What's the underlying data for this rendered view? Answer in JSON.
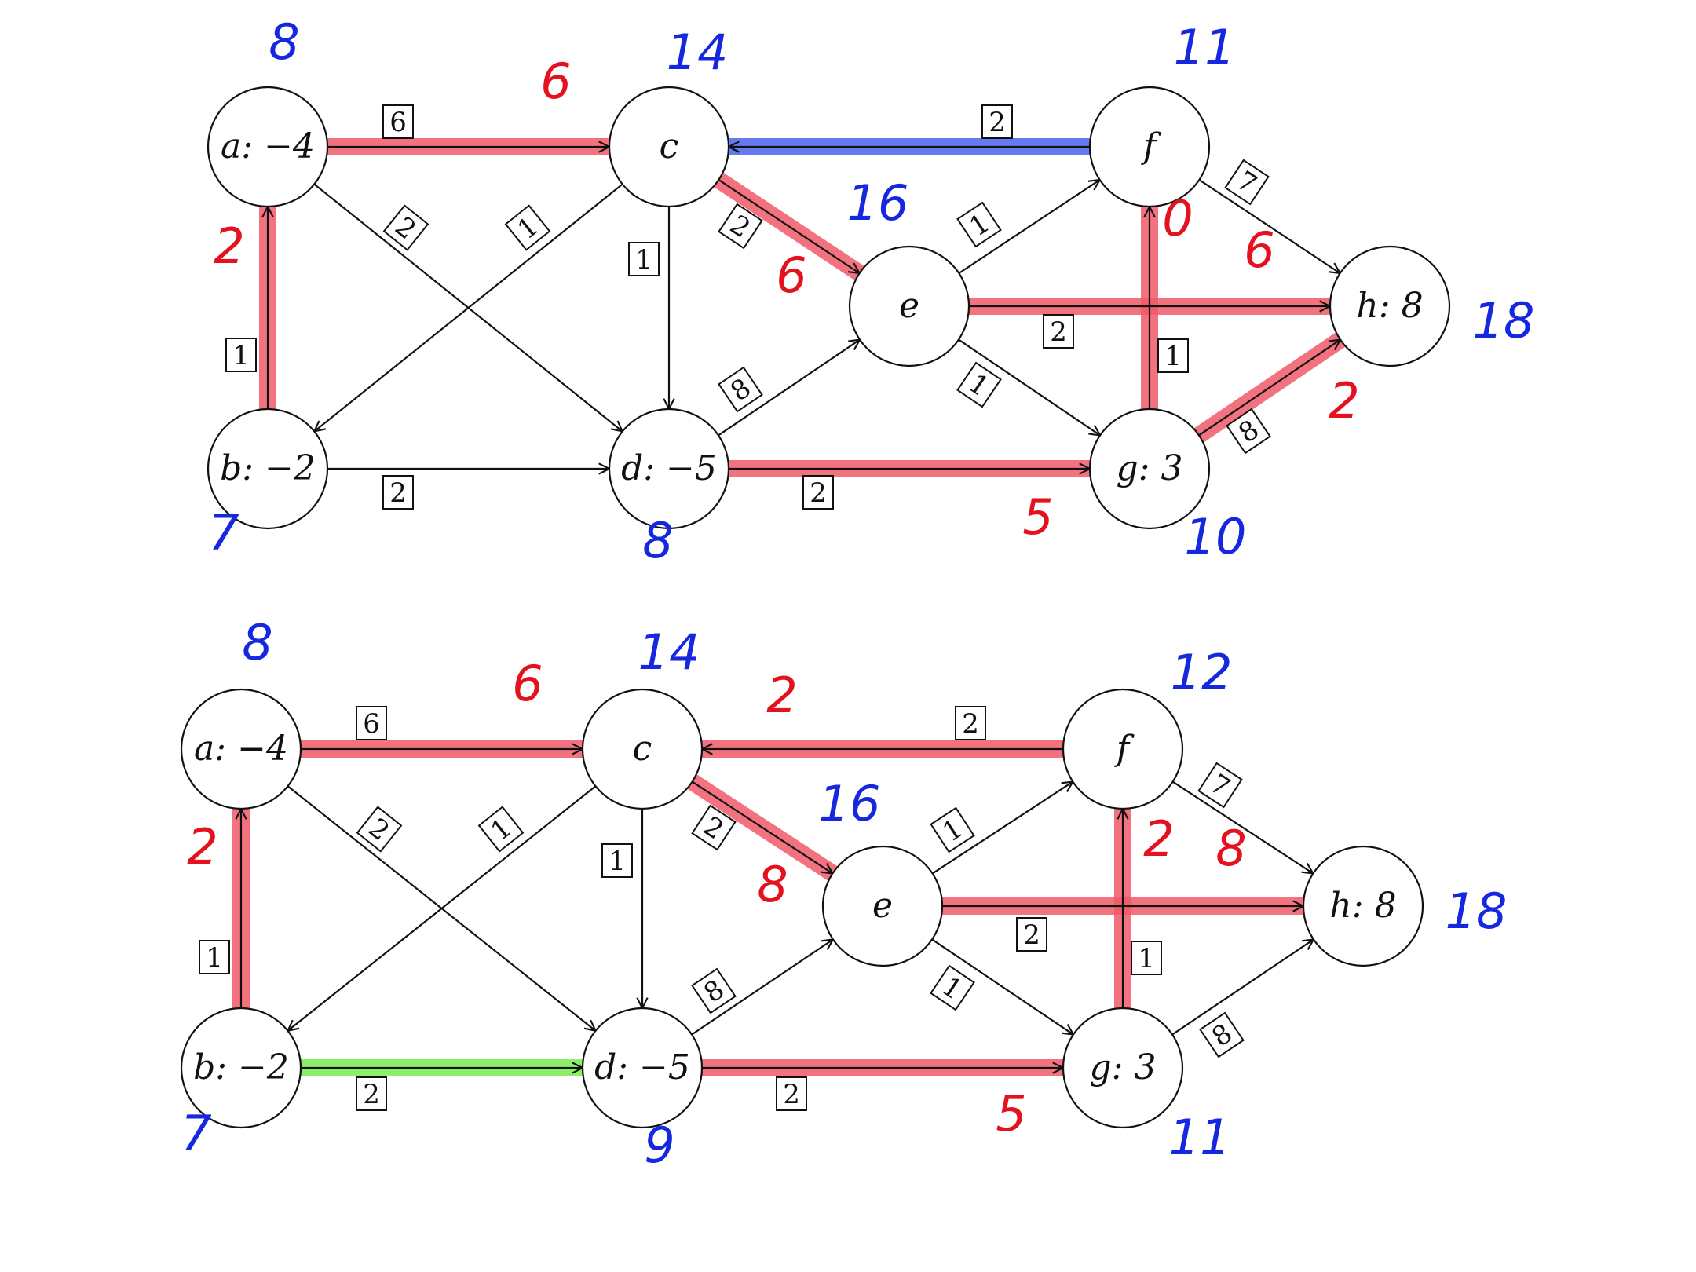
{
  "colors": {
    "ink": "#111111",
    "red_highlight": "#f05a6a",
    "red_ink": "#e4111f",
    "blue_ink": "#1528e0",
    "blue_highlight": "#4a63ec",
    "green_highlight": "#7cec4e"
  },
  "graphs": [
    {
      "id": "top",
      "nodes": [
        {
          "id": "a",
          "label": "a: −4",
          "mark": "8"
        },
        {
          "id": "b",
          "label": "b: −2",
          "mark": "7"
        },
        {
          "id": "c",
          "label": "c",
          "mark": "14"
        },
        {
          "id": "d",
          "label": "d: −5",
          "mark": "8"
        },
        {
          "id": "e",
          "label": "e",
          "mark": "16"
        },
        {
          "id": "f",
          "label": "f",
          "mark": "11"
        },
        {
          "id": "g",
          "label": "g: 3",
          "mark": "10"
        },
        {
          "id": "h",
          "label": "h: 8",
          "mark": "18"
        }
      ],
      "edges": [
        {
          "from": "a",
          "to": "c",
          "cap": "6",
          "flow": "6",
          "hl": "red"
        },
        {
          "from": "b",
          "to": "a",
          "cap": "1",
          "flow": "2",
          "hl": "red"
        },
        {
          "from": "a",
          "to": "d",
          "cap": "2"
        },
        {
          "from": "c",
          "to": "b",
          "cap": "1"
        },
        {
          "from": "b",
          "to": "d",
          "cap": "2"
        },
        {
          "from": "c",
          "to": "d",
          "cap": "1"
        },
        {
          "from": "c",
          "to": "e",
          "cap": "2",
          "flow": "6",
          "hl": "red"
        },
        {
          "from": "f",
          "to": "c",
          "cap": "2",
          "hl": "blue"
        },
        {
          "from": "d",
          "to": "e",
          "cap": "8"
        },
        {
          "from": "d",
          "to": "g",
          "cap": "2",
          "flow": "5",
          "hl": "red"
        },
        {
          "from": "e",
          "to": "f",
          "cap": "1"
        },
        {
          "from": "e",
          "to": "h",
          "cap": "2",
          "flow": "6",
          "hl": "red"
        },
        {
          "from": "e",
          "to": "g",
          "cap": "1"
        },
        {
          "from": "g",
          "to": "f",
          "cap": "1",
          "flow": "0",
          "hl": "red"
        },
        {
          "from": "f",
          "to": "h",
          "cap": "7"
        },
        {
          "from": "g",
          "to": "h",
          "cap": "8",
          "flow": "2",
          "hl": "red"
        }
      ]
    },
    {
      "id": "bottom",
      "nodes": [
        {
          "id": "a",
          "label": "a: −4",
          "mark": "8"
        },
        {
          "id": "b",
          "label": "b: −2",
          "mark": "7"
        },
        {
          "id": "c",
          "label": "c",
          "mark": "14"
        },
        {
          "id": "d",
          "label": "d: −5",
          "mark": "9"
        },
        {
          "id": "e",
          "label": "e",
          "mark": "16"
        },
        {
          "id": "f",
          "label": "f",
          "mark": "12"
        },
        {
          "id": "g",
          "label": "g: 3",
          "mark": "11"
        },
        {
          "id": "h",
          "label": "h: 8",
          "mark": "18"
        }
      ],
      "edges": [
        {
          "from": "a",
          "to": "c",
          "cap": "6",
          "flow": "6",
          "hl": "red"
        },
        {
          "from": "b",
          "to": "a",
          "cap": "1",
          "flow": "2",
          "hl": "red"
        },
        {
          "from": "a",
          "to": "d",
          "cap": "2"
        },
        {
          "from": "c",
          "to": "b",
          "cap": "1"
        },
        {
          "from": "b",
          "to": "d",
          "cap": "2",
          "hl": "green"
        },
        {
          "from": "c",
          "to": "d",
          "cap": "1"
        },
        {
          "from": "c",
          "to": "e",
          "cap": "2",
          "flow": "8",
          "hl": "red"
        },
        {
          "from": "f",
          "to": "c",
          "cap": "2",
          "flow": "2",
          "hl": "red"
        },
        {
          "from": "d",
          "to": "e",
          "cap": "8"
        },
        {
          "from": "d",
          "to": "g",
          "cap": "2",
          "flow": "5",
          "hl": "red"
        },
        {
          "from": "e",
          "to": "f",
          "cap": "1"
        },
        {
          "from": "e",
          "to": "h",
          "cap": "2",
          "flow": "8",
          "hl": "red"
        },
        {
          "from": "e",
          "to": "g",
          "cap": "1"
        },
        {
          "from": "g",
          "to": "f",
          "cap": "1",
          "flow": "2",
          "hl": "red"
        },
        {
          "from": "f",
          "to": "h",
          "cap": "7"
        },
        {
          "from": "g",
          "to": "h",
          "cap": "8"
        }
      ]
    }
  ]
}
